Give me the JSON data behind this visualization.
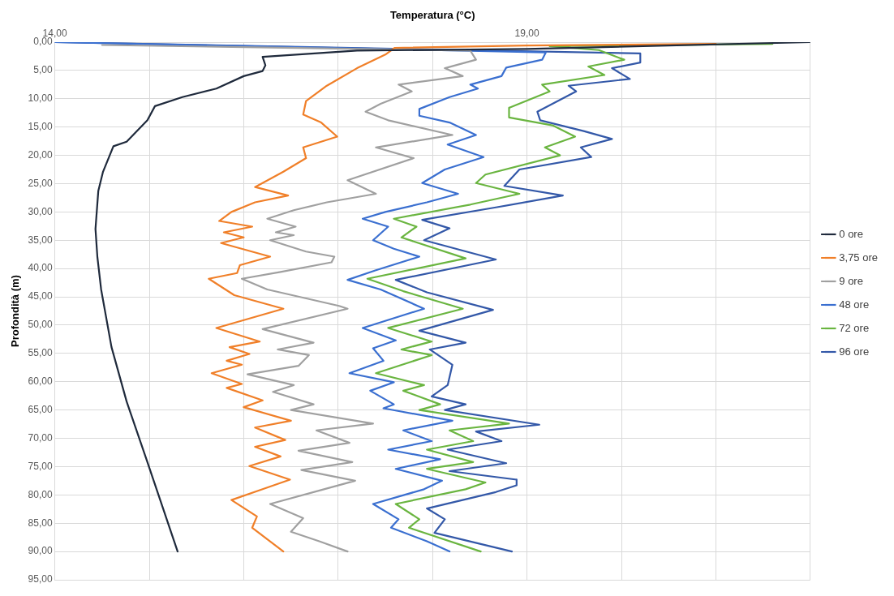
{
  "chart_data": {
    "type": "line",
    "xlabel": "Temperatura (°C)",
    "ylabel": "Profondità (m)",
    "xlim": [
      14,
      22
    ],
    "xticks": [
      {
        "value": 14,
        "label": "14,00"
      },
      {
        "value": 15,
        "label": null
      },
      {
        "value": 16,
        "label": null
      },
      {
        "value": 17,
        "label": null
      },
      {
        "value": 18,
        "label": null
      },
      {
        "value": 19,
        "label": "19,00"
      },
      {
        "value": 20,
        "label": null
      },
      {
        "value": 21,
        "label": null
      },
      {
        "value": 22,
        "label": null
      }
    ],
    "ylim": [
      95,
      0
    ],
    "yticks": [
      {
        "value": 0,
        "label": "0,00"
      },
      {
        "value": 5,
        "label": "5,00"
      },
      {
        "value": 10,
        "label": "10,00"
      },
      {
        "value": 15,
        "label": "15,00"
      },
      {
        "value": 20,
        "label": "20,00"
      },
      {
        "value": 25,
        "label": "25,00"
      },
      {
        "value": 30,
        "label": "30,00"
      },
      {
        "value": 35,
        "label": "35,00"
      },
      {
        "value": 40,
        "label": "40,00"
      },
      {
        "value": 45,
        "label": "45,00"
      },
      {
        "value": 50,
        "label": "50,00"
      },
      {
        "value": 55,
        "label": "55,00"
      },
      {
        "value": 60,
        "label": "60,00"
      },
      {
        "value": 65,
        "label": "65,00"
      },
      {
        "value": 70,
        "label": "70,00"
      },
      {
        "value": 75,
        "label": "75,00"
      },
      {
        "value": 80,
        "label": "80,00"
      },
      {
        "value": 85,
        "label": "85,00"
      },
      {
        "value": 90,
        "label": "90,00"
      },
      {
        "value": 95,
        "label": "95,00"
      }
    ],
    "grid": true,
    "legend": "right",
    "marker": "none",
    "line_style": "solid",
    "series": [
      {
        "name": "0 ore",
        "color": "#1f2a3c",
        "x": [
          22,
          19,
          17.2,
          16.2,
          16.23,
          16.2,
          16.0,
          15.71,
          15.35,
          15.06,
          14.98,
          14.76,
          14.62,
          14.51,
          14.46,
          14.43,
          14.45,
          14.49,
          14.6,
          14.76,
          14.98,
          15.3
        ],
        "values": [
          0,
          1.2,
          1.5,
          2.6,
          4.1,
          5.1,
          6.0,
          8.2,
          9.7,
          11.3,
          13.8,
          17.6,
          18.4,
          22.9,
          26.3,
          33,
          37.9,
          43.7,
          53.9,
          63.5,
          74.2,
          90
        ]
      },
      {
        "name": "3,75 ore",
        "color": "#f07f28",
        "x": [
          21,
          19,
          17.6,
          17.5,
          17.2,
          16.88,
          16.66,
          16.63,
          16.82,
          16.99,
          16.63,
          16.66,
          16.42,
          16.12,
          16.47,
          16.12,
          15.87,
          15.74,
          16.09,
          15.79,
          16.0,
          15.76,
          16.28,
          15.96,
          15.93,
          15.63,
          15.9,
          16.42,
          15.71,
          16.17,
          15.85,
          16.06,
          15.82,
          15.98,
          15.66,
          15.98,
          15.82,
          16.2,
          16.0,
          16.5,
          16.12,
          16.44,
          16.12,
          16.39,
          16.06,
          16.49,
          16.2,
          15.87,
          16.14,
          16.09,
          16.42
        ],
        "values": [
          0.3,
          0.6,
          1.0,
          2.2,
          4.6,
          7.7,
          10.4,
          12.8,
          14.2,
          16.7,
          18.6,
          20.5,
          22.9,
          25.6,
          27.1,
          28.3,
          30,
          31.6,
          32.6,
          33.6,
          34.5,
          35.5,
          37.9,
          39.4,
          40.8,
          41.8,
          44.7,
          47.1,
          50.5,
          52.9,
          53.9,
          55.1,
          56.3,
          57,
          58.5,
          60.4,
          61.1,
          63.3,
          64.5,
          66.9,
          68.1,
          70.3,
          71.5,
          73.2,
          74.9,
          77.3,
          79,
          80.9,
          83.8,
          85.8,
          90
        ]
      },
      {
        "name": "9 ore",
        "color": "#a0a0a0",
        "x": [
          14.5,
          18.4,
          18.46,
          18.13,
          18.32,
          17.64,
          17.78,
          17.45,
          17.29,
          17.53,
          18.21,
          17.4,
          17.8,
          17.1,
          17.4,
          16.88,
          16.53,
          16.25,
          16.55,
          16.34,
          16.53,
          16.28,
          16.66,
          16.96,
          16.93,
          16.39,
          15.98,
          16.25,
          17.01,
          17.1,
          16.2,
          16.74,
          16.36,
          16.69,
          16.58,
          16.04,
          16.53,
          16.31,
          16.74,
          16.5,
          17.37,
          16.77,
          17.12,
          16.58,
          17.15,
          16.61,
          17.18,
          16.85,
          16.28,
          16.63,
          16.5,
          16.8,
          17.1
        ],
        "values": [
          0.5,
          1.5,
          3.1,
          4.6,
          6.0,
          7.5,
          8.7,
          10.9,
          12.3,
          13.8,
          16.4,
          18.6,
          20.5,
          24.4,
          26.8,
          28.3,
          29.7,
          31.2,
          32.6,
          33.6,
          34.1,
          35,
          37,
          37.9,
          38.9,
          40.6,
          41.8,
          43.7,
          46.6,
          47.1,
          50.7,
          53.1,
          54.3,
          55.3,
          57.2,
          58.7,
          60.6,
          61.8,
          64,
          65,
          67.4,
          68.6,
          70.8,
          72.2,
          74.2,
          75.6,
          77.5,
          79,
          81.6,
          84.1,
          86.5,
          88.2,
          90
        ]
      },
      {
        "name": "48 ore",
        "color": "#3a6fd0",
        "x": [
          14,
          19.2,
          19.16,
          18.78,
          18.73,
          18.4,
          18.48,
          18.18,
          17.86,
          17.86,
          18.18,
          18.46,
          18.16,
          18.54,
          18.13,
          17.89,
          18.27,
          17.94,
          17.5,
          17.26,
          17.53,
          17.37,
          17.59,
          17.86,
          17.4,
          17.1,
          17.45,
          17.91,
          17.26,
          17.61,
          17.37,
          17.48,
          17.12,
          17.59,
          17.34,
          17.59,
          17.48,
          18.21,
          17.69,
          17.99,
          17.53,
          18.08,
          17.61,
          18.1,
          17.91,
          17.37,
          17.64,
          17.56,
          17.94,
          18.18
        ],
        "values": [
          0,
          1.8,
          3.1,
          4.5,
          6.0,
          7.5,
          8.2,
          9.7,
          11.8,
          13,
          14.2,
          16.4,
          18.1,
          20.3,
          22.5,
          24.9,
          26.8,
          28.3,
          30,
          31.2,
          32.6,
          35,
          36.5,
          37.9,
          40.3,
          42,
          43.7,
          47.1,
          50.5,
          52.7,
          54.1,
          56.3,
          58.5,
          60.1,
          61.6,
          64,
          64.7,
          66.9,
          68.6,
          70.5,
          72,
          73.7,
          75.4,
          77.5,
          79,
          81.6,
          84.3,
          85.8,
          88.2,
          90
        ]
      },
      {
        "name": "72 ore",
        "color": "#6ab540",
        "x": [
          21.6,
          19.24,
          19.76,
          20.03,
          19.65,
          19.82,
          19.16,
          19.24,
          18.81,
          18.81,
          19.27,
          19.51,
          19.19,
          19.35,
          18.56,
          18.46,
          18.92,
          18.4,
          17.59,
          17.83,
          17.67,
          18.35,
          17.31,
          17.69,
          18.32,
          17.53,
          17.99,
          17.67,
          17.99,
          17.4,
          17.91,
          17.69,
          18.08,
          17.86,
          18.81,
          18.18,
          18.43,
          17.94,
          18.43,
          17.94,
          18.56,
          18.35,
          17.61,
          17.86,
          17.75,
          18.51
        ],
        "values": [
          0.3,
          0.7,
          1.4,
          3.1,
          4.3,
          5.8,
          7.5,
          8.7,
          11.6,
          13.3,
          14.7,
          16.7,
          18.6,
          20,
          23.4,
          24.9,
          26.8,
          28.7,
          31.2,
          32.6,
          34.5,
          38.2,
          41.8,
          44,
          47.1,
          50.5,
          52.9,
          54.3,
          55.3,
          58.5,
          60.6,
          61.6,
          64,
          65,
          67.4,
          68.6,
          70.5,
          72,
          74.2,
          75.4,
          77.8,
          79,
          81.6,
          84.3,
          85.8,
          90
        ]
      },
      {
        "name": "96 ore",
        "color": "#3358a8",
        "x": [
          14,
          20.2,
          20.2,
          19.9,
          20.09,
          19.44,
          19.52,
          19.11,
          19.14,
          19.6,
          19.9,
          19.57,
          19.68,
          18.92,
          18.76,
          19.38,
          18.67,
          17.89,
          18.18,
          17.91,
          18.67,
          17.61,
          17.94,
          18.64,
          17.86,
          18.35,
          17.97,
          18.21,
          18.16,
          17.99,
          18.35,
          18.13,
          19.13,
          18.46,
          18.73,
          18.16,
          18.78,
          18.18,
          18.89,
          18.89,
          18.67,
          17.94,
          18.13,
          18.02,
          18.84
        ],
        "values": [
          0,
          2.0,
          3.6,
          4.6,
          6.5,
          7.7,
          8.7,
          12.3,
          13.8,
          15.7,
          17.1,
          18.6,
          20.3,
          22.5,
          25.4,
          27.1,
          29.2,
          31.4,
          32.9,
          35,
          38.4,
          42,
          44.2,
          47.3,
          51,
          53.1,
          54.3,
          57,
          60.6,
          62.6,
          64,
          65,
          67.6,
          68.8,
          70.5,
          72,
          74.4,
          75.8,
          77.3,
          78.3,
          79.5,
          82.4,
          84.3,
          86.7,
          90
        ]
      }
    ]
  }
}
